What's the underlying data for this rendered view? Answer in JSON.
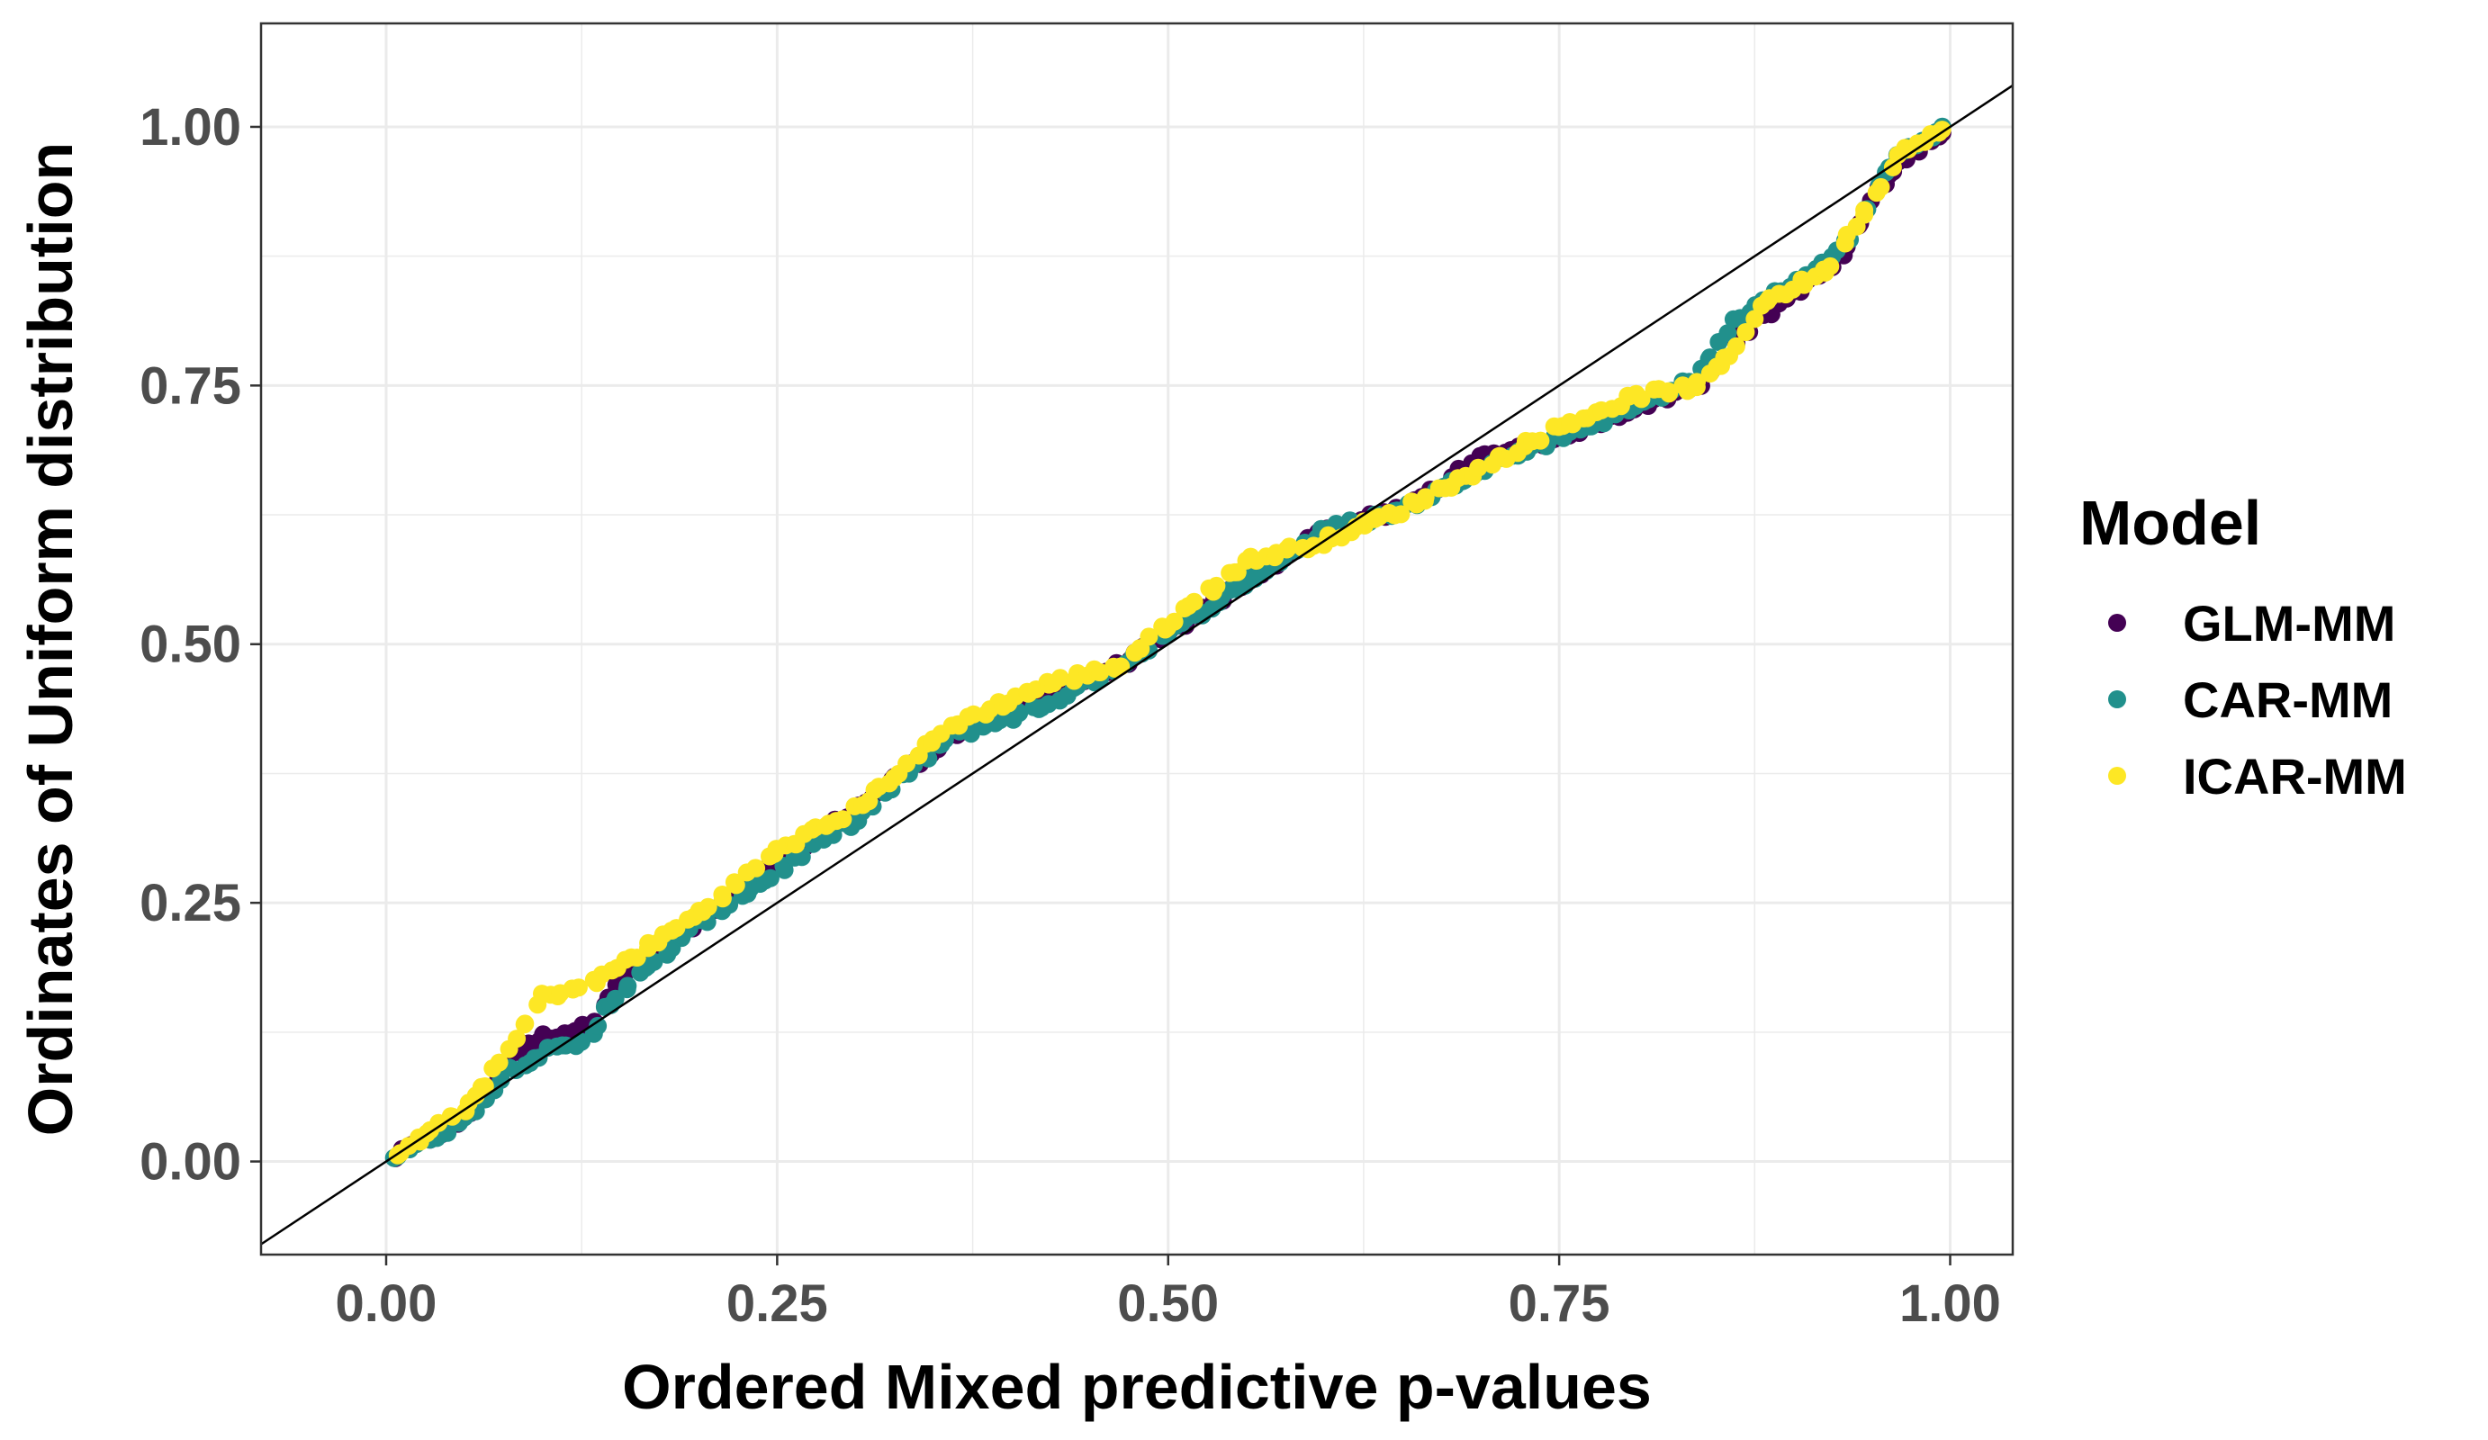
{
  "chart_data": {
    "type": "scatter",
    "xlabel": "Ordered Mixed predictive p-values",
    "ylabel": "Ordinates of Uniform distribution",
    "xlim": [
      -0.08,
      1.04
    ],
    "ylim": [
      -0.09,
      1.1
    ],
    "x_ticks": [
      "0.00",
      "0.25",
      "0.50",
      "0.75",
      "1.00"
    ],
    "y_ticks": [
      "0.00",
      "0.25",
      "0.50",
      "0.75",
      "1.00"
    ],
    "grid": true,
    "reference_line": "y = x",
    "legend": {
      "title": "Model",
      "position": "right"
    },
    "series": [
      {
        "name": "GLM-MM",
        "color": "#440154",
        "curve": [
          [
            0.0,
            0.0
          ],
          [
            0.05,
            0.04
          ],
          [
            0.08,
            0.1
          ],
          [
            0.1,
            0.12
          ],
          [
            0.13,
            0.13
          ],
          [
            0.15,
            0.18
          ],
          [
            0.2,
            0.23
          ],
          [
            0.25,
            0.29
          ],
          [
            0.3,
            0.34
          ],
          [
            0.36,
            0.41
          ],
          [
            0.42,
            0.45
          ],
          [
            0.47,
            0.48
          ],
          [
            0.5,
            0.51
          ],
          [
            0.55,
            0.56
          ],
          [
            0.6,
            0.61
          ],
          [
            0.65,
            0.63
          ],
          [
            0.7,
            0.68
          ],
          [
            0.75,
            0.7
          ],
          [
            0.8,
            0.73
          ],
          [
            0.84,
            0.75
          ],
          [
            0.86,
            0.79
          ],
          [
            0.9,
            0.84
          ],
          [
            0.93,
            0.87
          ],
          [
            0.95,
            0.93
          ],
          [
            0.97,
            0.97
          ],
          [
            1.0,
            1.0
          ]
        ]
      },
      {
        "name": "CAR-MM",
        "color": "#21908c",
        "curve": [
          [
            0.0,
            0.0
          ],
          [
            0.05,
            0.04
          ],
          [
            0.08,
            0.09
          ],
          [
            0.1,
            0.105
          ],
          [
            0.13,
            0.115
          ],
          [
            0.14,
            0.15
          ],
          [
            0.2,
            0.23
          ],
          [
            0.25,
            0.28
          ],
          [
            0.3,
            0.33
          ],
          [
            0.36,
            0.41
          ],
          [
            0.42,
            0.44
          ],
          [
            0.47,
            0.48
          ],
          [
            0.5,
            0.51
          ],
          [
            0.55,
            0.56
          ],
          [
            0.6,
            0.61
          ],
          [
            0.65,
            0.63
          ],
          [
            0.7,
            0.67
          ],
          [
            0.75,
            0.7
          ],
          [
            0.8,
            0.73
          ],
          [
            0.84,
            0.76
          ],
          [
            0.86,
            0.81
          ],
          [
            0.9,
            0.85
          ],
          [
            0.93,
            0.88
          ],
          [
            0.95,
            0.93
          ],
          [
            0.97,
            0.98
          ],
          [
            1.0,
            1.0
          ]
        ]
      },
      {
        "name": "ICAR-MM",
        "color": "#fde725",
        "curve": [
          [
            0.0,
            0.0
          ],
          [
            0.05,
            0.05
          ],
          [
            0.08,
            0.11
          ],
          [
            0.1,
            0.16
          ],
          [
            0.13,
            0.17
          ],
          [
            0.15,
            0.19
          ],
          [
            0.2,
            0.24
          ],
          [
            0.25,
            0.3
          ],
          [
            0.3,
            0.34
          ],
          [
            0.36,
            0.42
          ],
          [
            0.42,
            0.46
          ],
          [
            0.47,
            0.48
          ],
          [
            0.5,
            0.52
          ],
          [
            0.55,
            0.58
          ],
          [
            0.6,
            0.6
          ],
          [
            0.65,
            0.63
          ],
          [
            0.7,
            0.67
          ],
          [
            0.75,
            0.71
          ],
          [
            0.8,
            0.74
          ],
          [
            0.84,
            0.75
          ],
          [
            0.86,
            0.78
          ],
          [
            0.88,
            0.83
          ],
          [
            0.92,
            0.86
          ],
          [
            0.95,
            0.93
          ],
          [
            0.97,
            0.98
          ],
          [
            1.0,
            1.0
          ]
        ]
      }
    ]
  }
}
